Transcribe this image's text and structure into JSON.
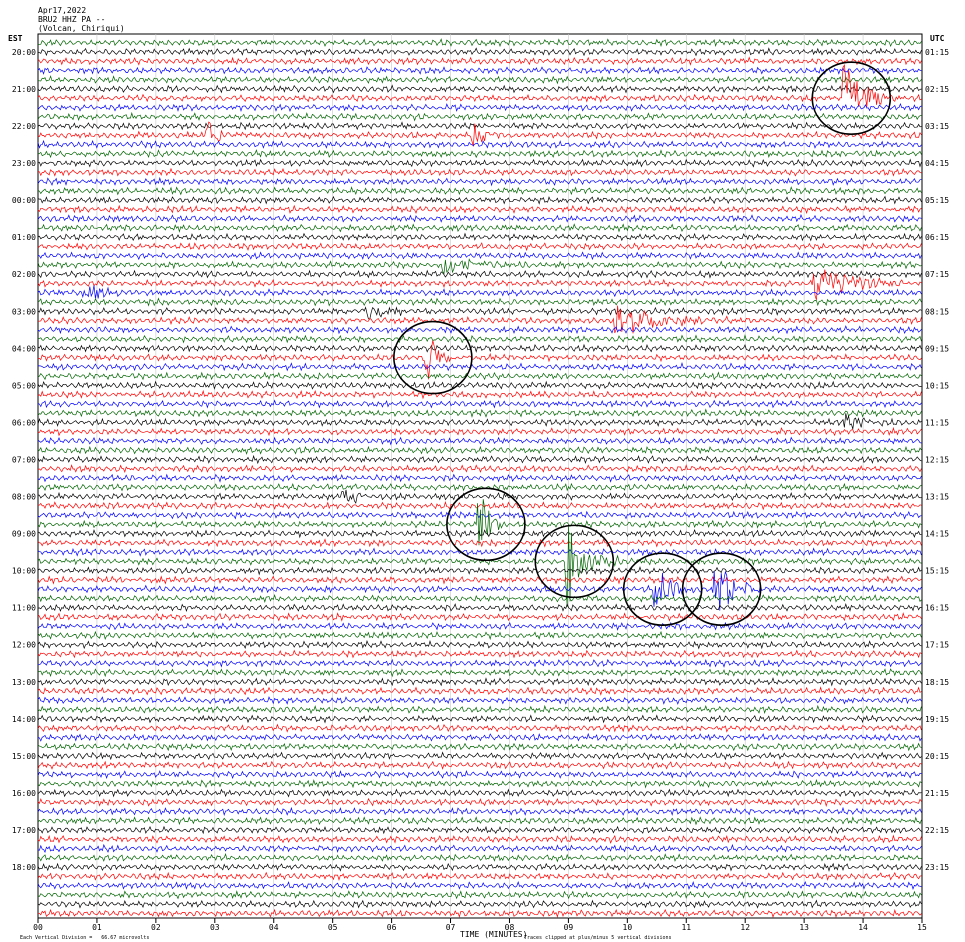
{
  "header": {
    "date": "Apr17,2022",
    "station": "BRU2 HHZ PA --",
    "location": "(Volcan, Chiriqui)"
  },
  "left_timezone": "EST",
  "right_timezone": "UTC",
  "footer": {
    "scale_note": "Each Vertical Division =   66.67 microvolts",
    "clip_note": "Traces clipped at plus/minus 5 vertical divisions"
  },
  "colors": {
    "cycle": [
      "#000000",
      "#ff0000",
      "#0000ff",
      "#006400"
    ],
    "circle": "#000000"
  },
  "chart_data": {
    "type": "seismogram",
    "xlabel": "TIME (MINUTES)",
    "x_ticks": [
      "00",
      "01",
      "02",
      "03",
      "04",
      "05",
      "06",
      "07",
      "08",
      "09",
      "10",
      "11",
      "12",
      "13",
      "14",
      "15"
    ],
    "xlim": [
      0,
      15
    ],
    "traces_per_hour": 4,
    "trace_minutes": 15,
    "left_hour_labels": [
      "20:00",
      "21:00",
      "22:00",
      "23:00",
      "00:00",
      "01:00",
      "02:00",
      "03:00",
      "04:00",
      "05:00",
      "06:00",
      "07:00",
      "08:00",
      "09:00",
      "10:00",
      "11:00",
      "12:00",
      "13:00",
      "14:00",
      "15:00",
      "16:00",
      "17:00",
      "18:00"
    ],
    "right_hour_labels": [
      "01:15",
      "02:15",
      "03:15",
      "04:15",
      "05:15",
      "06:15",
      "07:15",
      "08:15",
      "09:15",
      "10:15",
      "11:15",
      "12:15",
      "13:15",
      "14:15",
      "15:15",
      "16:15",
      "17:15",
      "18:15",
      "19:15",
      "20:15",
      "21:15",
      "22:15",
      "23:15"
    ],
    "events": [
      {
        "trace": 6,
        "minute": 13.7,
        "amp": 4.0,
        "dur": 1.0,
        "circled": true
      },
      {
        "trace": 34,
        "minute": 6.6,
        "amp": 2.6,
        "dur": 0.7,
        "circled": true
      },
      {
        "trace": 52,
        "minute": 7.5,
        "amp": 3.5,
        "dur": 0.5,
        "circled": true
      },
      {
        "trace": 56,
        "minute": 9.0,
        "amp": 5.0,
        "dur": 0.9,
        "circled": true
      },
      {
        "trace": 59,
        "minute": 10.5,
        "amp": 2.3,
        "dur": 0.8,
        "circled": true
      },
      {
        "trace": 59,
        "minute": 11.5,
        "amp": 3.2,
        "dur": 0.9,
        "circled": true
      },
      {
        "trace": 30,
        "minute": 9.8,
        "amp": 2.0,
        "dur": 2.0,
        "circled": false
      },
      {
        "trace": 26,
        "minute": 13.2,
        "amp": 2.0,
        "dur": 1.8,
        "circled": false
      },
      {
        "trace": 10,
        "minute": 2.9,
        "amp": 1.5,
        "dur": 0.6,
        "circled": false
      },
      {
        "trace": 10,
        "minute": 7.4,
        "amp": 1.5,
        "dur": 0.5,
        "circled": false
      },
      {
        "trace": 29,
        "minute": 5.6,
        "amp": 1.2,
        "dur": 1.0,
        "circled": false
      },
      {
        "trace": 24,
        "minute": 6.9,
        "amp": 1.0,
        "dur": 1.5,
        "circled": false
      },
      {
        "trace": 27,
        "minute": 0.8,
        "amp": 1.2,
        "dur": 0.8,
        "circled": false
      },
      {
        "trace": 49,
        "minute": 5.2,
        "amp": 1.0,
        "dur": 0.6,
        "circled": false
      },
      {
        "trace": 41,
        "minute": 13.7,
        "amp": 1.1,
        "dur": 0.8,
        "circled": false
      }
    ]
  }
}
